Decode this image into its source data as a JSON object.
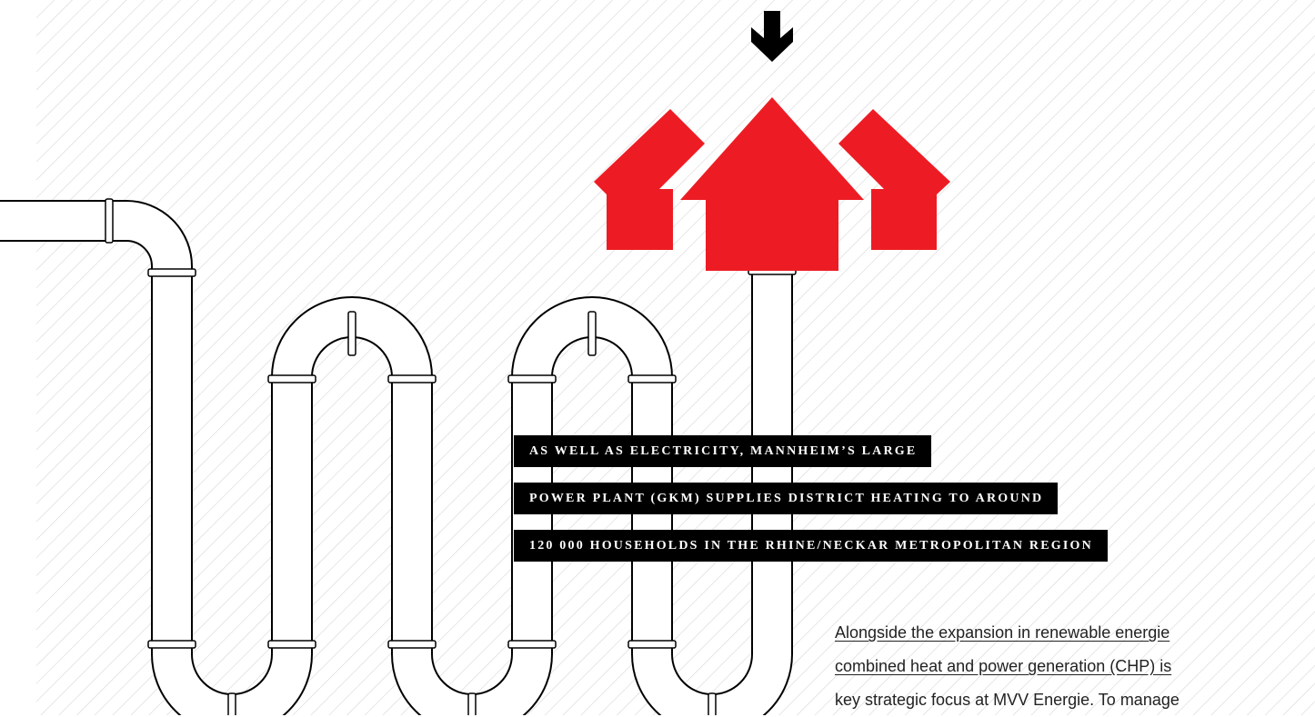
{
  "headline": {
    "lines": [
      "AS WELL AS ELECTRICITY, MANNHEIM’S LARGE",
      "POWER PLANT (GKM) SUPPLIES DISTRICT HEATING TO AROUND",
      "120 000 HOUSEHOLDS IN THE RHINE/NECKAR METROPOLITAN REGION"
    ]
  },
  "body": {
    "lines": [
      "Alongside the expansion in renewable energie",
      "combined heat and power generation (CHP) is",
      "key strategic focus at MVV Energie. To manage"
    ]
  }
}
